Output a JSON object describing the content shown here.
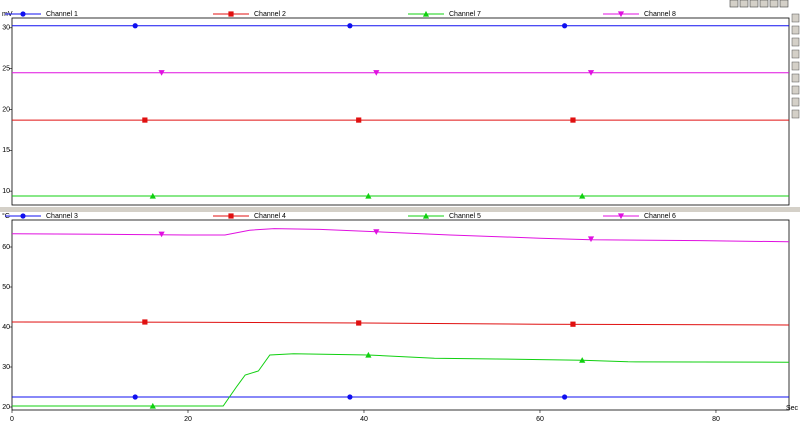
{
  "chart_data": [
    {
      "type": "line",
      "y_unit": "mV",
      "xlim": [
        0,
        88.3
      ],
      "ylim": [
        8.3,
        31.2
      ],
      "yticks": [
        10,
        15,
        20,
        25,
        30
      ],
      "series": [
        {
          "name": "Channel 1",
          "color": "#1010f0",
          "marker": "circle",
          "x": [
            0,
            88.3
          ],
          "values": [
            30.25,
            30.25
          ],
          "markers": {
            "x": [
              14,
              38.4,
              62.8
            ],
            "values": [
              30.25,
              30.25,
              30.25
            ]
          }
        },
        {
          "name": "Channel 2",
          "color": "#e01010",
          "marker": "square",
          "x": [
            0,
            88.3
          ],
          "values": [
            18.7,
            18.7
          ],
          "markers": {
            "x": [
              15.1,
              39.4,
              63.75
            ],
            "values": [
              18.7,
              18.7,
              18.7
            ]
          }
        },
        {
          "name": "Channel 7",
          "color": "#10d010",
          "marker": "triangle-up",
          "x": [
            0,
            88.3
          ],
          "values": [
            9.4,
            9.4
          ],
          "markers": {
            "x": [
              16,
              40.5,
              64.8
            ],
            "values": [
              9.4,
              9.4,
              9.4
            ]
          }
        },
        {
          "name": "Channel 8",
          "color": "#e010e0",
          "marker": "triangle-down",
          "x": [
            0,
            88.3
          ],
          "values": [
            24.5,
            24.5
          ],
          "markers": {
            "x": [
              17,
              41.4,
              65.8
            ],
            "values": [
              24.5,
              24.5,
              24.5
            ]
          }
        }
      ]
    },
    {
      "type": "line",
      "y_unit": "°C",
      "x_label": "Sec",
      "xlim": [
        0,
        88.3
      ],
      "ylim": [
        19.25,
        66.75
      ],
      "xticks": [
        0,
        20,
        40,
        60,
        80
      ],
      "yticks": [
        20,
        30,
        40,
        50,
        60
      ],
      "series": [
        {
          "name": "Channel 3",
          "color": "#1010f0",
          "marker": "circle",
          "x": [
            0,
            24,
            88.3
          ],
          "values": [
            22.5,
            22.5,
            22.5
          ],
          "markers": {
            "x": [
              14,
              38.4,
              62.8
            ],
            "values": [
              22.5,
              22.5,
              22.5
            ]
          }
        },
        {
          "name": "Channel 4",
          "color": "#e01010",
          "marker": "square",
          "x": [
            0,
            20,
            40,
            60,
            88.3
          ],
          "values": [
            41.25,
            41.2,
            41.0,
            40.7,
            40.5
          ],
          "markers": {
            "x": [
              15.1,
              39.4,
              63.75
            ],
            "values": [
              41.25,
              41.0,
              40.7
            ]
          }
        },
        {
          "name": "Channel 5",
          "color": "#10d010",
          "marker": "triangle-up",
          "x": [
            0,
            24,
            25.5,
            26.5,
            28,
            29.3,
            32,
            40.5,
            48,
            55,
            64.8,
            70,
            88.3
          ],
          "values": [
            20.25,
            20.25,
            25,
            28,
            29,
            33,
            33.3,
            33,
            32.2,
            32,
            31.7,
            31.3,
            31.2
          ],
          "markers": {
            "x": [
              16,
              40.5,
              64.8
            ],
            "values": [
              20.25,
              33,
              31.7
            ]
          }
        },
        {
          "name": "Channel 6",
          "color": "#e010e0",
          "marker": "triangle-down",
          "x": [
            0,
            10,
            20,
            24.2,
            27,
            29.8,
            35,
            41.4,
            49.8,
            60,
            65.8,
            78.2,
            88.3
          ],
          "values": [
            63.3,
            63.2,
            63.0,
            63.0,
            64.2,
            64.6,
            64.4,
            63.8,
            63.0,
            62.2,
            61.8,
            61.6,
            61.3
          ],
          "markers": {
            "x": [
              17,
              41.4,
              65.8
            ],
            "values": [
              63.2,
              63.8,
              62.0
            ]
          }
        }
      ]
    }
  ]
}
